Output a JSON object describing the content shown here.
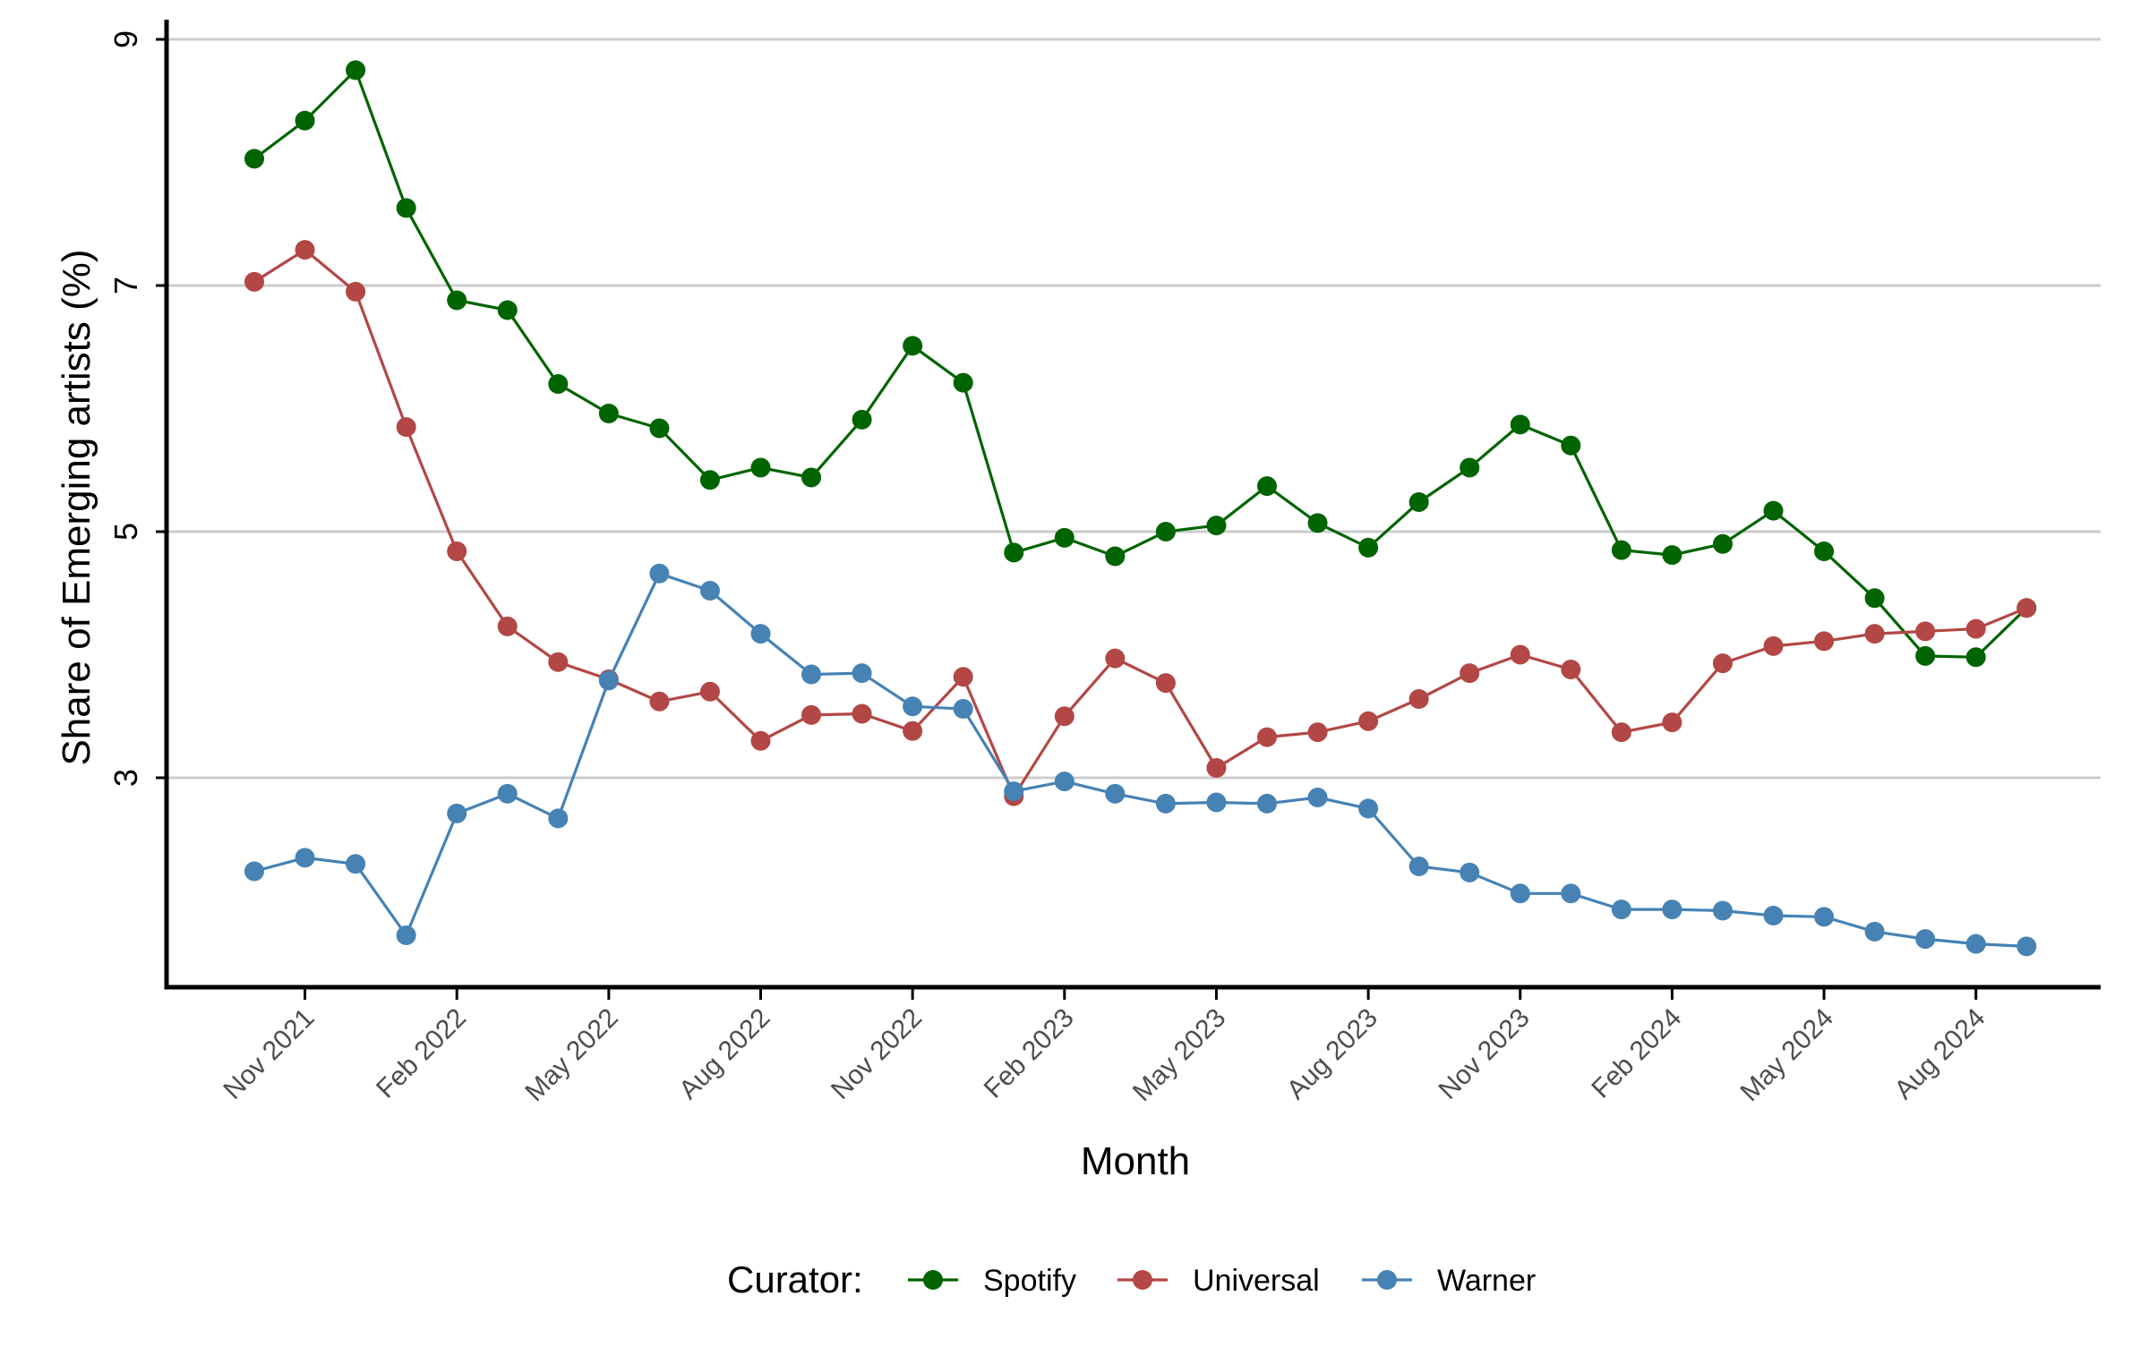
{
  "chart_data": {
    "type": "line",
    "title": "",
    "xlabel": "Month",
    "ylabel": "Share of Emerging artists (%)",
    "ylim": [
      1.7,
      9.2
    ],
    "y_ticks": [
      3,
      5,
      7,
      9
    ],
    "y_tick_labels": [
      "3",
      "5",
      "7",
      "9"
    ],
    "grid": "horizontal major",
    "legend": {
      "title": "Curator:",
      "position": "bottom"
    },
    "x": [
      "2021-10",
      "2021-11",
      "2021-12",
      "2022-01",
      "2022-02",
      "2022-03",
      "2022-04",
      "2022-05",
      "2022-06",
      "2022-07",
      "2022-08",
      "2022-09",
      "2022-10",
      "2022-11",
      "2022-12",
      "2023-01",
      "2023-02",
      "2023-03",
      "2023-04",
      "2023-05",
      "2023-06",
      "2023-07",
      "2023-08",
      "2023-09",
      "2023-10",
      "2023-11",
      "2023-12",
      "2024-01",
      "2024-02",
      "2024-03",
      "2024-04",
      "2024-05",
      "2024-06",
      "2024-07",
      "2024-08",
      "2024-09"
    ],
    "x_ticks": [
      "2021-11",
      "2022-02",
      "2022-05",
      "2022-08",
      "2022-11",
      "2023-02",
      "2023-05",
      "2023-08",
      "2023-11",
      "2024-02",
      "2024-05",
      "2024-08"
    ],
    "x_tick_labels": [
      "Nov 2021",
      "Feb 2022",
      "May 2022",
      "Aug 2022",
      "Nov 2022",
      "Feb 2023",
      "May 2023",
      "Aug 2023",
      "Nov 2023",
      "Feb 2024",
      "May 2024",
      "Aug 2024"
    ],
    "series": [
      {
        "name": "Spotify",
        "color": "#006400",
        "values": [
          8.03,
          8.34,
          8.75,
          7.63,
          6.88,
          6.8,
          6.2,
          5.96,
          5.84,
          5.42,
          5.52,
          5.44,
          5.91,
          6.51,
          6.21,
          4.83,
          4.95,
          4.8,
          5.0,
          5.05,
          5.37,
          5.07,
          4.87,
          5.24,
          5.52,
          5.87,
          5.7,
          4.85,
          4.81,
          4.9,
          5.17,
          4.84,
          4.46,
          3.99,
          3.98,
          4.38
        ]
      },
      {
        "name": "Universal",
        "color": "#B24745",
        "values": [
          7.03,
          7.29,
          6.95,
          5.85,
          4.84,
          4.23,
          3.94,
          3.8,
          3.62,
          3.7,
          3.3,
          3.51,
          3.52,
          3.38,
          3.82,
          2.85,
          3.5,
          3.97,
          3.77,
          3.08,
          3.33,
          3.37,
          3.46,
          3.64,
          3.85,
          4.0,
          3.88,
          3.37,
          3.45,
          3.93,
          4.07,
          4.11,
          4.17,
          4.19,
          4.21,
          4.38
        ]
      },
      {
        "name": "Warner",
        "color": "#4682B4",
        "values": [
          2.24,
          2.35,
          2.3,
          1.72,
          2.71,
          2.87,
          2.67,
          3.79,
          4.66,
          4.52,
          4.17,
          3.84,
          3.85,
          3.58,
          3.56,
          2.89,
          2.97,
          2.87,
          2.79,
          2.8,
          2.79,
          2.84,
          2.75,
          2.28,
          2.23,
          2.06,
          2.06,
          1.93,
          1.93,
          1.92,
          1.88,
          1.87,
          1.75,
          1.69,
          1.65,
          1.63
        ]
      }
    ]
  }
}
